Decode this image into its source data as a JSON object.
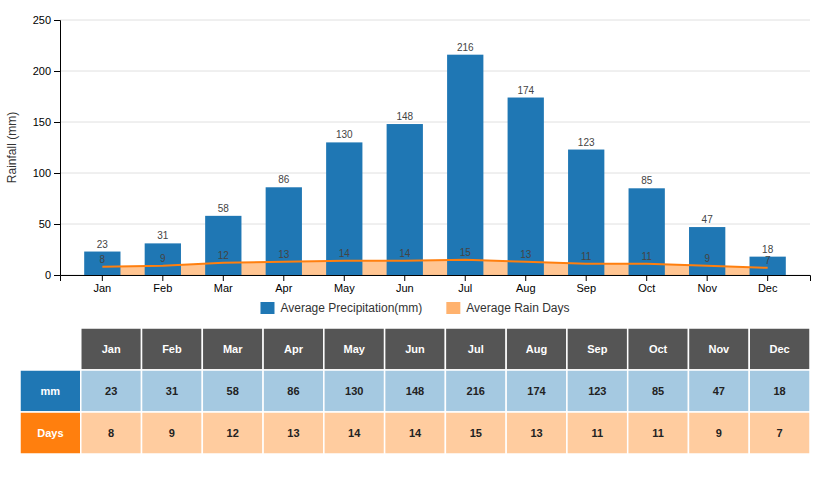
{
  "chart_data": {
    "type": "bar",
    "categories": [
      "Jan",
      "Feb",
      "Mar",
      "Apr",
      "May",
      "Jun",
      "Jul",
      "Aug",
      "Sep",
      "Oct",
      "Nov",
      "Dec"
    ],
    "series": [
      {
        "name": "Average Precipitation(mm)",
        "type": "bar",
        "values": [
          23,
          31,
          58,
          86,
          130,
          148,
          216,
          174,
          123,
          85,
          47,
          18
        ]
      },
      {
        "name": "Average Rain Days",
        "type": "area",
        "values": [
          8,
          9,
          12,
          13,
          14,
          14,
          15,
          13,
          11,
          11,
          9,
          7
        ]
      }
    ],
    "y_label": "Rainfall (mm)",
    "ylim": [
      0,
      250
    ],
    "yticks": [
      0,
      50,
      100,
      150,
      200,
      250
    ],
    "grid": true,
    "legend": "bottom",
    "data_labels": true,
    "table_row_labels": [
      "mm",
      "Days"
    ]
  }
}
